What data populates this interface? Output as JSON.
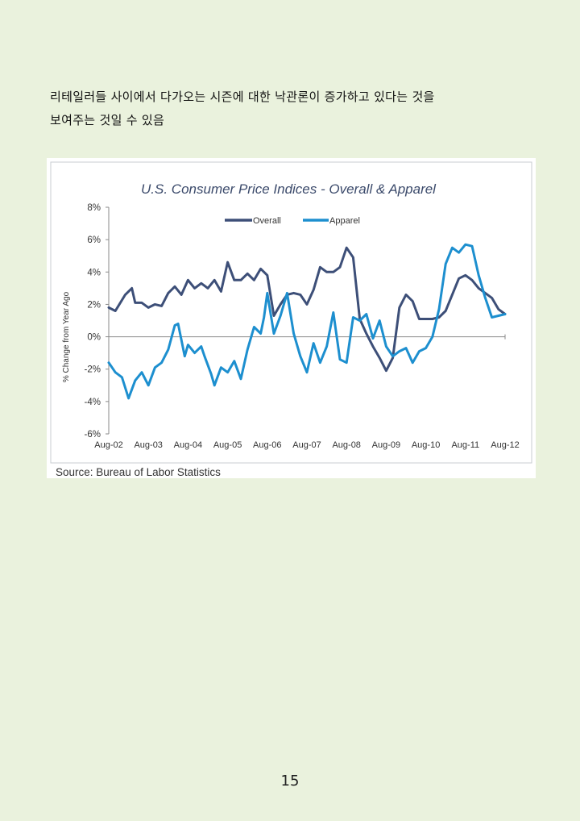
{
  "document": {
    "paragraph": [
      "리테일러들 사이에서 다가오는 시즌에 대한 낙관론이 증가하고 있다는 것을",
      "보여주는 것일 수 있음"
    ],
    "page_number": "15"
  },
  "colors": {
    "page_background": "#eaf2dd",
    "overall": "#3d4f78",
    "apparel": "#1d8fcf"
  },
  "chart_data": {
    "type": "line",
    "title": "U.S. Consumer Price Indices - Overall & Apparel",
    "ylabel": "% Change from Year Ago",
    "xlabel": "",
    "source": "Source: Bureau of Labor Statistics",
    "ylim": [
      -6,
      8
    ],
    "yticks": [
      {
        "value": 8,
        "label": "8%"
      },
      {
        "value": 6,
        "label": "6%"
      },
      {
        "value": 4,
        "label": "4%"
      },
      {
        "value": 2,
        "label": "2%"
      },
      {
        "value": 0,
        "label": "0%"
      },
      {
        "value": -2,
        "label": "-2%"
      },
      {
        "value": -4,
        "label": "-4%"
      },
      {
        "value": -6,
        "label": "-6%"
      }
    ],
    "xticks": [
      "Aug-02",
      "Aug-03",
      "Aug-04",
      "Aug-05",
      "Aug-06",
      "Aug-07",
      "Aug-08",
      "Aug-09",
      "Aug-10",
      "Aug-11",
      "Aug-12"
    ],
    "legend": "top-center",
    "grid": false,
    "series": [
      {
        "name": "Overall",
        "color": "#3d4f78",
        "x": [
          2002.583,
          2002.75,
          2003.0,
          2003.167,
          2003.25,
          2003.417,
          2003.583,
          2003.75,
          2003.917,
          2004.083,
          2004.25,
          2004.417,
          2004.583,
          2004.75,
          2004.917,
          2005.083,
          2005.25,
          2005.417,
          2005.583,
          2005.75,
          2005.917,
          2006.083,
          2006.25,
          2006.417,
          2006.583,
          2006.75,
          2006.917,
          2007.083,
          2007.25,
          2007.417,
          2007.583,
          2007.75,
          2007.917,
          2008.083,
          2008.25,
          2008.417,
          2008.583,
          2008.75,
          2008.917,
          2009.083,
          2009.25,
          2009.417,
          2009.583,
          2009.75,
          2009.917,
          2010.083,
          2010.25,
          2010.417,
          2010.583,
          2010.75,
          2010.917,
          2011.083,
          2011.25,
          2011.417,
          2011.583,
          2011.75,
          2011.917,
          2012.083,
          2012.25,
          2012.417,
          2012.583
        ],
        "values": [
          1.8,
          1.6,
          2.6,
          3.0,
          2.1,
          2.1,
          1.8,
          2.0,
          1.9,
          2.7,
          3.1,
          2.6,
          3.5,
          3.0,
          3.3,
          3.0,
          3.5,
          2.8,
          4.6,
          3.5,
          3.5,
          3.9,
          3.5,
          4.2,
          3.8,
          1.3,
          2.0,
          2.6,
          2.7,
          2.6,
          2.0,
          2.9,
          4.3,
          4.0,
          4.0,
          4.3,
          5.5,
          4.9,
          1.1,
          0.2,
          -0.6,
          -1.3,
          -2.1,
          -1.3,
          1.8,
          2.6,
          2.2,
          1.1,
          1.1,
          1.1,
          1.2,
          1.6,
          2.6,
          3.6,
          3.8,
          3.5,
          3.0,
          2.7,
          2.4,
          1.7,
          1.4
        ]
      },
      {
        "name": "Apparel",
        "color": "#1d8fcf",
        "x": [
          2002.583,
          2002.75,
          2002.917,
          2003.083,
          2003.25,
          2003.417,
          2003.583,
          2003.75,
          2003.917,
          2004.083,
          2004.25,
          2004.333,
          2004.5,
          2004.583,
          2004.75,
          2004.917,
          2005.0,
          2005.167,
          2005.25,
          2005.417,
          2005.583,
          2005.75,
          2005.917,
          2006.083,
          2006.25,
          2006.417,
          2006.5,
          2006.583,
          2006.75,
          2006.917,
          2007.083,
          2007.25,
          2007.417,
          2007.583,
          2007.75,
          2007.917,
          2008.083,
          2008.25,
          2008.417,
          2008.583,
          2008.75,
          2008.917,
          2009.083,
          2009.25,
          2009.417,
          2009.583,
          2009.75,
          2009.917,
          2010.083,
          2010.25,
          2010.417,
          2010.583,
          2010.75,
          2010.917,
          2011.083,
          2011.25,
          2011.417,
          2011.583,
          2011.75,
          2011.917,
          2012.083,
          2012.25,
          2012.417,
          2012.583
        ],
        "values": [
          -1.6,
          -2.2,
          -2.5,
          -3.8,
          -2.7,
          -2.2,
          -3.0,
          -1.9,
          -1.6,
          -0.8,
          0.7,
          0.8,
          -1.2,
          -0.5,
          -1.0,
          -0.6,
          -1.2,
          -2.3,
          -3.0,
          -1.9,
          -2.2,
          -1.5,
          -2.6,
          -0.8,
          0.6,
          0.2,
          1.2,
          2.7,
          0.2,
          1.3,
          2.7,
          0.2,
          -1.2,
          -2.2,
          -0.4,
          -1.6,
          -0.6,
          1.5,
          -1.4,
          -1.6,
          1.2,
          1.0,
          1.4,
          -0.1,
          1.0,
          -0.6,
          -1.2,
          -0.9,
          -0.7,
          -1.6,
          -0.9,
          -0.7,
          0.0,
          1.7,
          4.5,
          5.5,
          5.2,
          5.7,
          5.6,
          3.8,
          2.4,
          1.2,
          1.3,
          1.4
        ]
      }
    ]
  }
}
